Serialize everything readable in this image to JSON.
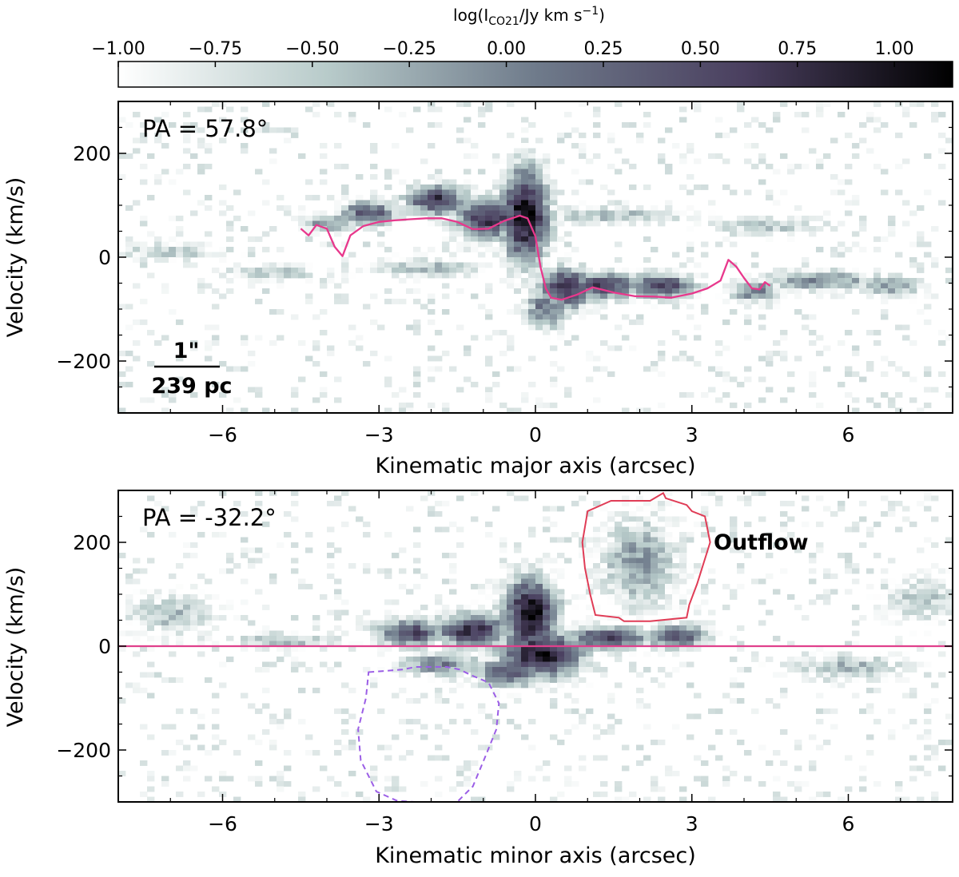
{
  "colors": {
    "cmap": [
      "#ffffff",
      "#b8cbca",
      "#6f7b8b",
      "#4a3f5f",
      "#000000"
    ],
    "model_curve": "#e8388c",
    "systemic_line": "#e0408c",
    "outflow_contour": "#e03c56",
    "counter_outflow_contour": "#9b5ee6",
    "frame": "#000000"
  },
  "colorbar": {
    "title": "log(I_CO21/Jy km s^−1)",
    "title_main": "log(I",
    "title_sub": "CO21",
    "title_tail": "/Jy km s",
    "title_exp": "−1",
    "title_close": ")",
    "range": [
      -1.0,
      1.15
    ],
    "ticks": [
      "−1.00",
      "−0.75",
      "−0.50",
      "−0.25",
      "0.00",
      "0.25",
      "0.50",
      "0.75",
      "1.00"
    ]
  },
  "chart_data": [
    {
      "type": "heatmap",
      "panel": "position-velocity diagram along major axis",
      "pa_label": "PA = 57.8°",
      "xlabel": "Kinematic major axis (arcsec)",
      "ylabel": "Velocity (km/s)",
      "xlim": [
        -8,
        8
      ],
      "ylim": [
        -300,
        300
      ],
      "xticks": [
        -6,
        -3,
        0,
        3,
        6
      ],
      "xtick_labels": [
        "−6",
        "−3",
        "0",
        "3",
        "6"
      ],
      "yticks": [
        -200,
        0,
        200
      ],
      "ytick_labels": [
        "−200",
        "0",
        "200"
      ],
      "scalebar": {
        "top": "1\"",
        "bottom": "239 pc"
      },
      "emission_blobs": [
        {
          "x": -0.2,
          "v": 80,
          "sx": 0.35,
          "sv": 70,
          "amp": 1.1
        },
        {
          "x": -0.9,
          "v": 75,
          "sx": 0.5,
          "sv": 30,
          "amp": 0.75
        },
        {
          "x": -1.9,
          "v": 110,
          "sx": 0.45,
          "sv": 22,
          "amp": 0.7
        },
        {
          "x": -3.2,
          "v": 85,
          "sx": 0.4,
          "sv": 18,
          "amp": 0.45
        },
        {
          "x": -4.0,
          "v": 65,
          "sx": 0.4,
          "sv": 14,
          "amp": -0.1
        },
        {
          "x": 0.6,
          "v": -60,
          "sx": 0.4,
          "sv": 30,
          "amp": 0.8
        },
        {
          "x": 1.3,
          "v": -55,
          "sx": 0.5,
          "sv": 20,
          "amp": 0.6
        },
        {
          "x": 2.4,
          "v": -55,
          "sx": 0.5,
          "sv": 18,
          "amp": 0.6
        },
        {
          "x": 0.2,
          "v": -100,
          "sx": 0.3,
          "sv": 30,
          "amp": 0.2
        },
        {
          "x": 4.2,
          "v": -65,
          "sx": 0.35,
          "sv": 18,
          "amp": 0.1
        },
        {
          "x": 5.5,
          "v": -45,
          "sx": 0.9,
          "sv": 16,
          "amp": -0.05
        },
        {
          "x": 6.8,
          "v": -55,
          "sx": 0.5,
          "sv": 16,
          "amp": -0.1
        },
        {
          "x": 1.5,
          "v": 80,
          "sx": 1.2,
          "sv": 14,
          "amp": -0.4
        },
        {
          "x": 4.5,
          "v": 60,
          "sx": 1.0,
          "sv": 14,
          "amp": -0.5
        },
        {
          "x": -7.0,
          "v": 10,
          "sx": 0.8,
          "sv": 14,
          "amp": -0.45
        },
        {
          "x": -5.0,
          "v": -30,
          "sx": 0.9,
          "sv": 14,
          "amp": -0.5
        },
        {
          "x": -2.0,
          "v": -20,
          "sx": 0.9,
          "sv": 14,
          "amp": -0.4
        }
      ],
      "series": [
        {
          "style": "line",
          "x": [
            -4.5,
            -4.35,
            -4.2,
            -4.0,
            -3.85,
            -3.7,
            -3.55,
            -3.3,
            -3.0,
            -2.7,
            -2.4,
            -2.1,
            -1.8,
            -1.5,
            -1.2,
            -0.9,
            -0.6,
            -0.3,
            -0.15,
            0.0,
            0.1,
            0.2,
            0.3,
            0.5,
            0.8,
            1.1,
            1.5,
            1.9,
            2.3,
            2.6,
            3.0,
            3.3,
            3.55,
            3.7,
            3.85,
            4.0,
            4.15,
            4.3,
            4.4,
            4.5
          ],
          "y": [
            55,
            42,
            62,
            55,
            20,
            2,
            42,
            60,
            68,
            71,
            73,
            75,
            75,
            68,
            54,
            55,
            70,
            80,
            75,
            40,
            -20,
            -60,
            -78,
            -82,
            -72,
            -58,
            -68,
            -75,
            -76,
            -78,
            -70,
            -60,
            -45,
            -5,
            -18,
            -40,
            -60,
            -62,
            -48,
            -55
          ]
        }
      ]
    },
    {
      "type": "heatmap",
      "panel": "position-velocity diagram along minor axis",
      "pa_label": "PA = -32.2°",
      "xlabel": "Kinematic minor axis (arcsec)",
      "ylabel": "Velocity (km/s)",
      "xlim": [
        -8,
        8
      ],
      "ylim": [
        -300,
        300
      ],
      "xticks": [
        -6,
        -3,
        0,
        3,
        6
      ],
      "xtick_labels": [
        "−6",
        "−3",
        "0",
        "3",
        "6"
      ],
      "yticks": [
        -200,
        0,
        200
      ],
      "ytick_labels": [
        "−200",
        "0",
        "200"
      ],
      "annotation": "Outflow",
      "emission_blobs": [
        {
          "x": -0.1,
          "v": 60,
          "sx": 0.4,
          "sv": 55,
          "amp": 1.1
        },
        {
          "x": 0.1,
          "v": -15,
          "sx": 0.6,
          "sv": 35,
          "amp": 1.0
        },
        {
          "x": -1.2,
          "v": 30,
          "sx": 0.55,
          "sv": 25,
          "amp": 0.75
        },
        {
          "x": -2.4,
          "v": 25,
          "sx": 0.5,
          "sv": 20,
          "amp": 0.6
        },
        {
          "x": 1.4,
          "v": 15,
          "sx": 0.6,
          "sv": 18,
          "amp": 0.6
        },
        {
          "x": 2.7,
          "v": 20,
          "sx": 0.5,
          "sv": 18,
          "amp": 0.4
        },
        {
          "x": -0.5,
          "v": -50,
          "sx": 0.5,
          "sv": 22,
          "amp": 0.45
        },
        {
          "x": -1.8,
          "v": -35,
          "sx": 0.6,
          "sv": 16,
          "amp": 0.1
        },
        {
          "x": 2.0,
          "v": 160,
          "sx": 0.6,
          "sv": 70,
          "amp": -0.15
        },
        {
          "x": -7.0,
          "v": 60,
          "sx": 0.7,
          "sv": 30,
          "amp": -0.4
        },
        {
          "x": 6.0,
          "v": -40,
          "sx": 0.9,
          "sv": 20,
          "amp": -0.35
        },
        {
          "x": 7.4,
          "v": 90,
          "sx": 0.6,
          "sv": 35,
          "amp": -0.5
        },
        {
          "x": -4.8,
          "v": 10,
          "sx": 0.9,
          "sv": 14,
          "amp": -0.45
        }
      ],
      "series": [
        {
          "style": "line",
          "x": [
            -8,
            8
          ],
          "y": [
            0,
            0
          ]
        },
        {
          "style": "closed-contour",
          "x": [
            1.45,
            2.2,
            2.45,
            2.5,
            2.9,
            3.0,
            3.25,
            3.35,
            3.1,
            2.95,
            2.9,
            2.2,
            1.7,
            1.6,
            1.15,
            1.05,
            0.95,
            0.9,
            1.0,
            1.45
          ],
          "y": [
            280,
            280,
            295,
            285,
            272,
            260,
            250,
            200,
            120,
            80,
            55,
            48,
            48,
            55,
            60,
            100,
            150,
            200,
            260,
            280
          ]
        },
        {
          "style": "closed-contour-dashed",
          "x": [
            -3.2,
            -2.55,
            -2.3,
            -1.7,
            -1.45,
            -1.25,
            -0.9,
            -0.7,
            -0.75,
            -0.95,
            -1.2,
            -1.5,
            -2.0,
            -2.65,
            -3.05,
            -3.35,
            -3.4,
            -3.25,
            -3.2
          ],
          "y": [
            -50,
            -45,
            -40,
            -40,
            -45,
            -55,
            -70,
            -110,
            -160,
            -210,
            -270,
            -300,
            -302,
            -298,
            -280,
            -220,
            -160,
            -100,
            -50
          ]
        }
      ]
    }
  ]
}
